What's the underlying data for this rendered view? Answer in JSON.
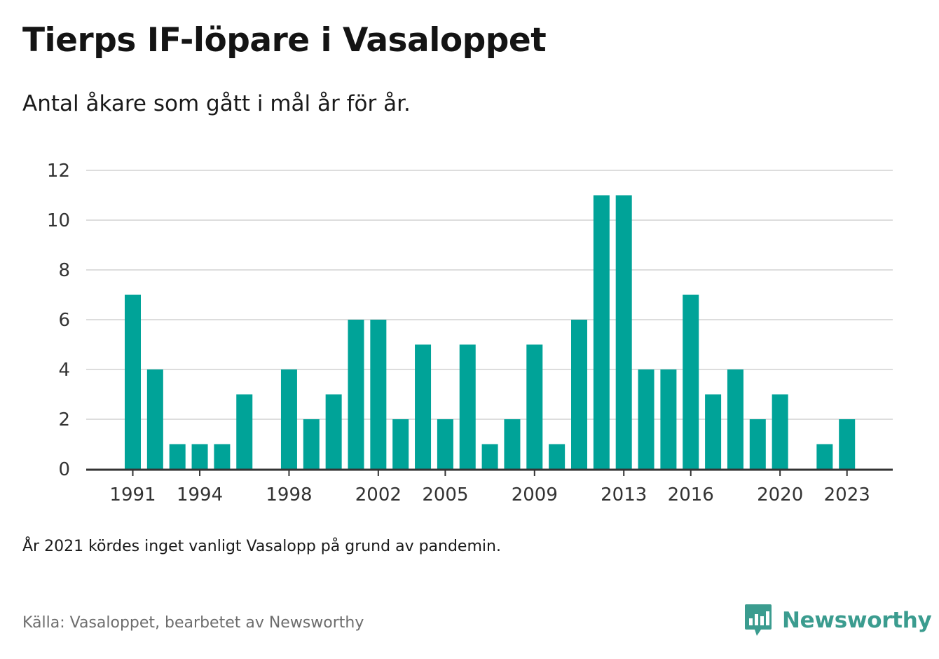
{
  "title": "Tierps IF-löpare i Vasaloppet",
  "subtitle": "Antal åkare som gått i mål år för år.",
  "note": "År 2021 kördes inget vanligt Vasalopp på grund av pandemin.",
  "source": "Källa: Vasaloppet, bearbetet av Newsworthy",
  "brand": "Newsworthy",
  "colors": {
    "bar": "#00a398",
    "grid": "#dddddd",
    "axis": "#333333",
    "brand": "#3b9c8f"
  },
  "chart_data": {
    "type": "bar",
    "x": [
      1991,
      1992,
      1993,
      1994,
      1995,
      1996,
      1997,
      1998,
      1999,
      2000,
      2001,
      2002,
      2003,
      2004,
      2005,
      2006,
      2007,
      2008,
      2009,
      2010,
      2011,
      2012,
      2013,
      2014,
      2015,
      2016,
      2017,
      2018,
      2019,
      2020,
      2021,
      2022,
      2023
    ],
    "values": [
      7,
      4,
      1,
      1,
      1,
      3,
      0,
      4,
      2,
      3,
      6,
      6,
      2,
      5,
      2,
      5,
      1,
      2,
      5,
      1,
      6,
      11,
      11,
      4,
      4,
      7,
      3,
      4,
      2,
      3,
      0,
      1,
      2
    ],
    "x_ticks": [
      1991,
      1994,
      1998,
      2002,
      2005,
      2009,
      2013,
      2016,
      2020,
      2023
    ],
    "y_ticks": [
      0,
      2,
      4,
      6,
      8,
      10,
      12
    ],
    "ylim": [
      0,
      12
    ],
    "xlabel": "",
    "ylabel": "",
    "grid": true,
    "legend": "none"
  }
}
